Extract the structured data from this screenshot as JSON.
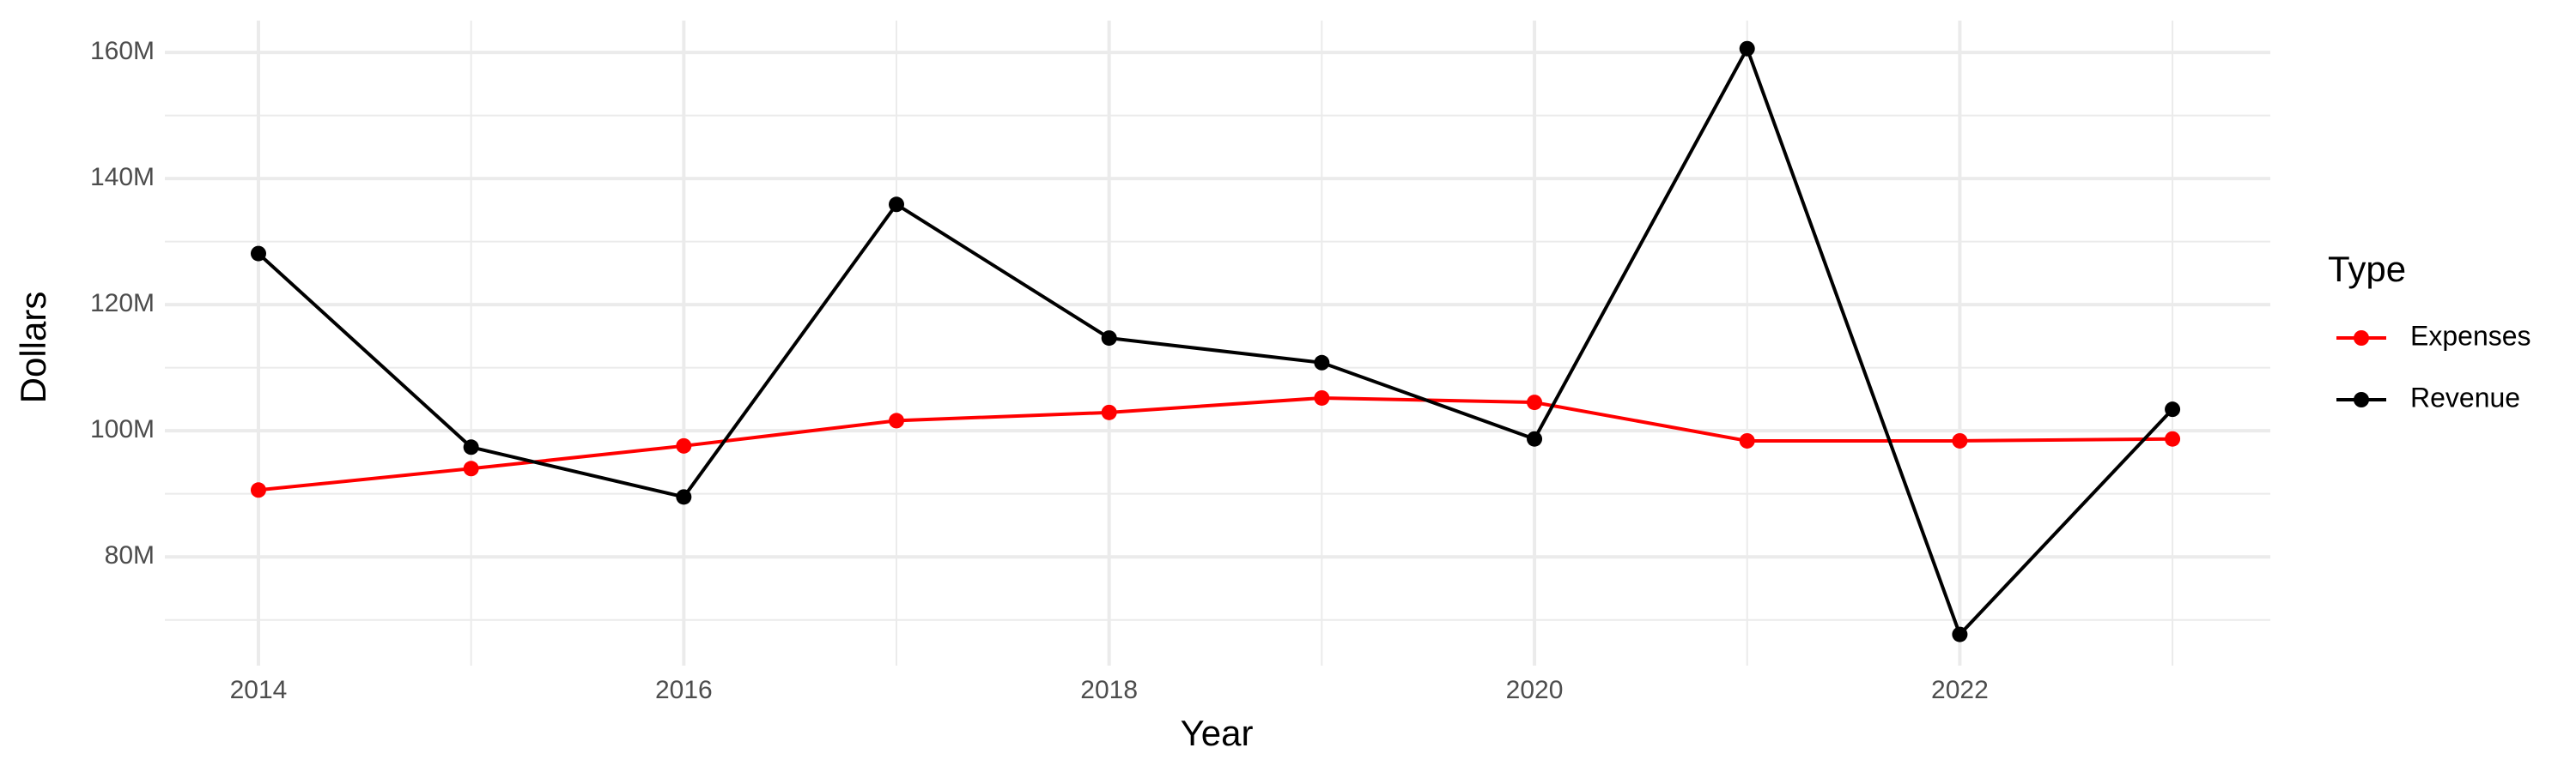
{
  "chart_data": {
    "type": "line",
    "xlabel": "Year",
    "ylabel": "Dollars",
    "x": [
      2014,
      2015,
      2016,
      2017,
      2018,
      2019,
      2020,
      2021,
      2022,
      2023
    ],
    "series": [
      {
        "name": "Expenses",
        "color": "#ff0000",
        "values": [
          90600000,
          94000000,
          97600000,
          101600000,
          102900000,
          105200000,
          104500000,
          98400000,
          98400000,
          98700000
        ]
      },
      {
        "name": "Revenue",
        "color": "#000000",
        "values": [
          128100000,
          97400000,
          89500000,
          135900000,
          114700000,
          110800000,
          98700000,
          160600000,
          67700000,
          103400000
        ]
      }
    ],
    "xlim": [
      2013.56,
      2023.46
    ],
    "ylim": [
      62750000,
      165050000
    ],
    "xticks": [
      2014,
      2016,
      2018,
      2020,
      2022
    ],
    "yticks": [
      {
        "value": 80000000,
        "label": "80M"
      },
      {
        "value": 100000000,
        "label": "100M"
      },
      {
        "value": 120000000,
        "label": "120M"
      },
      {
        "value": 140000000,
        "label": "140M"
      },
      {
        "value": 160000000,
        "label": "160M"
      }
    ],
    "grid": true,
    "legend_title": "Type",
    "legend_position": "right"
  }
}
